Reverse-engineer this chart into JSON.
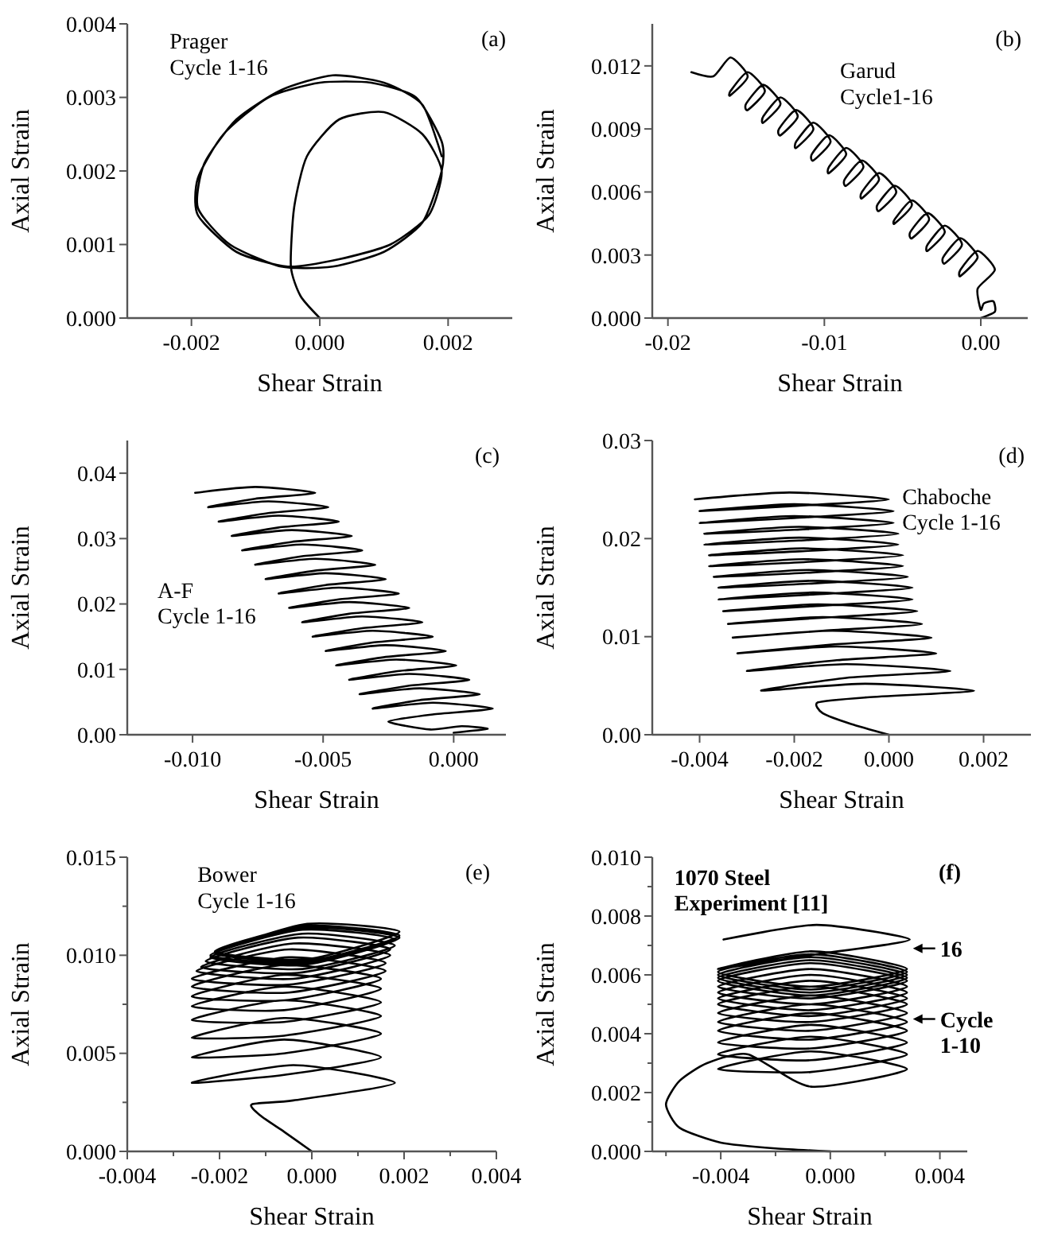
{
  "chart_data": [
    {
      "type": "line",
      "xlabel": "Shear Strain",
      "ylabel": "Axial Strain",
      "xlim": [
        -0.003,
        0.003
      ],
      "ylim": [
        0,
        0.004
      ],
      "xticks": [
        {
          "value": -0.002,
          "label": "-0.002"
        },
        {
          "value": 0,
          "label": "0.000"
        },
        {
          "value": 0.002,
          "label": "0.002"
        }
      ],
      "yticks": [
        {
          "value": 0,
          "label": "0.000"
        },
        {
          "value": 0.001,
          "label": "0.001"
        },
        {
          "value": 0.002,
          "label": "0.002"
        },
        {
          "value": 0.003,
          "label": "0.003"
        },
        {
          "value": 0.004,
          "label": "0.004"
        }
      ],
      "annotations": [
        "(a)",
        "Prager\nCycle 1-16"
      ],
      "series": [
        {
          "color": "#000000",
          "x": [
            0,
            -0.0003,
            -0.00045,
            -0.0004,
            -0.0002,
            0.0003,
            0.001,
            0.0016,
            0.0019,
            0.0017,
            0.0011,
            0.0003,
            -0.0005,
            -0.0013,
            -0.0019,
            -0.0019,
            -0.0015,
            -0.0008,
            0,
            0.0008,
            0.0015,
            0.0019,
            0.0019,
            0.0016,
            0.001,
            0.0002,
            -0.0006,
            -0.0014,
            -0.0019,
            -0.0018,
            -0.0013,
            -0.0006,
            0.0002,
            0.001,
            0.0016,
            0.0019
          ],
          "values": [
            0,
            0.0003,
            0.0007,
            0.0015,
            0.0022,
            0.0027,
            0.0028,
            0.0025,
            0.002,
            0.0014,
            0.001,
            0.0008,
            0.0007,
            0.0009,
            0.0014,
            0.0019,
            0.0025,
            0.003,
            0.0032,
            0.0032,
            0.003,
            0.0024,
            0.002,
            0.0013,
            0.0009,
            0.0007,
            0.0007,
            0.001,
            0.0015,
            0.0021,
            0.0027,
            0.0031,
            0.0033,
            0.0032,
            0.0029,
            0.0022
          ]
        }
      ]
    },
    {
      "type": "line",
      "xlabel": "Shear Strain",
      "ylabel": "Axial Strain",
      "xlim": [
        -0.021,
        0.003
      ],
      "ylim": [
        0,
        0.014
      ],
      "xticks": [
        {
          "value": -0.02,
          "label": "-0.02"
        },
        {
          "value": -0.01,
          "label": "-0.01"
        },
        {
          "value": 0,
          "label": "0.00"
        }
      ],
      "yticks": [
        {
          "value": 0,
          "label": "0.000"
        },
        {
          "value": 0.003,
          "label": "0.003"
        },
        {
          "value": 0.006,
          "label": "0.006"
        },
        {
          "value": 0.009,
          "label": "0.009"
        },
        {
          "value": 0.012,
          "label": "0.012"
        }
      ],
      "annotations": [
        "(b)",
        "Garud\nCycle1-16"
      ],
      "series": [
        {
          "color": "#000000",
          "x": [
            0,
            0.0009,
            0.0008,
            0.0002,
            0,
            -0.0002,
            0.0009,
            -0.0002,
            -0.0013,
            -0.0013,
            -0.0002,
            -0.0013,
            -0.0024,
            -0.0023,
            -0.0012,
            -0.0023,
            -0.0034,
            -0.0034,
            -0.0023,
            -0.0034,
            -0.0045,
            -0.0044,
            -0.0033,
            -0.0044,
            -0.0055,
            -0.0055,
            -0.0044,
            -0.0055,
            -0.0066,
            -0.0065,
            -0.0054,
            -0.0065,
            -0.0076,
            -0.0076,
            -0.0065,
            -0.0076,
            -0.0087,
            -0.0086,
            -0.0075,
            -0.0086,
            -0.0097,
            -0.0097,
            -0.0086,
            -0.0097,
            -0.0108,
            -0.0107,
            -0.0096,
            -0.0107,
            -0.0118,
            -0.0118,
            -0.0107,
            -0.0118,
            -0.0129,
            -0.0128,
            -0.0117,
            -0.0128,
            -0.0139,
            -0.0139,
            -0.0128,
            -0.0139,
            -0.015,
            -0.0149,
            -0.0138,
            -0.0149,
            -0.016,
            -0.016,
            -0.0149,
            -0.016,
            -0.0171,
            -0.0185
          ],
          "values": [
            0,
            0.0003,
            0.0008,
            0.0007,
            0.0004,
            0.0014,
            0.0023,
            0.0032,
            0.0023,
            0.002,
            0.0029,
            0.0038,
            0.0029,
            0.0026,
            0.0035,
            0.0044,
            0.0035,
            0.0032,
            0.0041,
            0.005,
            0.0041,
            0.0038,
            0.0047,
            0.0056,
            0.0047,
            0.0045,
            0.0054,
            0.0063,
            0.0054,
            0.0051,
            0.006,
            0.0069,
            0.006,
            0.0057,
            0.0066,
            0.0075,
            0.0066,
            0.0063,
            0.0072,
            0.0081,
            0.0072,
            0.0069,
            0.0078,
            0.0087,
            0.0078,
            0.0075,
            0.0084,
            0.0093,
            0.0084,
            0.0081,
            0.009,
            0.0099,
            0.009,
            0.0087,
            0.0096,
            0.0105,
            0.0096,
            0.0093,
            0.0102,
            0.0111,
            0.0102,
            0.0099,
            0.0108,
            0.0117,
            0.0108,
            0.0106,
            0.0115,
            0.0124,
            0.0115,
            0.0117
          ]
        }
      ]
    },
    {
      "type": "line",
      "xlabel": "Shear Strain",
      "ylabel": "Axial Strain",
      "xlim": [
        -0.0125,
        0.002
      ],
      "ylim": [
        0,
        0.045
      ],
      "xticks": [
        {
          "value": -0.01,
          "label": "-0.010"
        },
        {
          "value": -0.005,
          "label": "-0.005"
        },
        {
          "value": 0,
          "label": "0.000"
        }
      ],
      "yticks": [
        {
          "value": 0,
          "label": "0.00"
        },
        {
          "value": 0.01,
          "label": "0.01"
        },
        {
          "value": 0.02,
          "label": "0.02"
        },
        {
          "value": 0.03,
          "label": "0.03"
        },
        {
          "value": 0.04,
          "label": "0.04"
        }
      ],
      "annotations": [
        "(c)",
        "A-F\nCycle 1-16"
      ],
      "series": [
        {
          "color": "#000000",
          "x": [
            0,
            0.0013,
            0.0003,
            -0.0009,
            -0.0025,
            -0.0008,
            0.0015,
            -0.0008,
            -0.0031,
            -0.0013,
            0.001,
            -0.0013,
            -0.0036,
            -0.0017,
            0.0006,
            -0.0017,
            -0.004,
            -0.0022,
            0.0001,
            -0.0022,
            -0.0045,
            -0.0026,
            -0.0003,
            -0.0026,
            -0.0049,
            -0.0031,
            -0.0008,
            -0.0031,
            -0.0054,
            -0.0035,
            -0.0012,
            -0.0035,
            -0.0058,
            -0.004,
            -0.0017,
            -0.004,
            -0.0063,
            -0.0044,
            -0.0021,
            -0.0044,
            -0.0067,
            -0.0049,
            -0.0026,
            -0.0049,
            -0.0072,
            -0.0053,
            -0.003,
            -0.0053,
            -0.0076,
            -0.0058,
            -0.0035,
            -0.0058,
            -0.0081,
            -0.0062,
            -0.0039,
            -0.0062,
            -0.0085,
            -0.0067,
            -0.0044,
            -0.0067,
            -0.009,
            -0.0071,
            -0.0048,
            -0.0071,
            -0.0094,
            -0.0076,
            -0.0053,
            -0.0076,
            -0.0099
          ],
          "values": [
            0.0003,
            0.0009,
            0.0013,
            0.0008,
            0.002,
            0.0031,
            0.004,
            0.0049,
            0.004,
            0.0053,
            0.0062,
            0.0071,
            0.0062,
            0.0075,
            0.0084,
            0.0093,
            0.0084,
            0.0097,
            0.0106,
            0.0115,
            0.0106,
            0.0119,
            0.0128,
            0.0137,
            0.0128,
            0.0141,
            0.015,
            0.0159,
            0.015,
            0.0163,
            0.0172,
            0.0181,
            0.0172,
            0.0185,
            0.0194,
            0.0203,
            0.0194,
            0.0207,
            0.0216,
            0.0225,
            0.0216,
            0.0229,
            0.0238,
            0.0247,
            0.0238,
            0.0251,
            0.026,
            0.0269,
            0.026,
            0.0273,
            0.0282,
            0.0291,
            0.0282,
            0.0295,
            0.0304,
            0.0313,
            0.0304,
            0.0317,
            0.0326,
            0.0335,
            0.0326,
            0.0339,
            0.0348,
            0.0357,
            0.0348,
            0.0361,
            0.037,
            0.0379,
            0.037
          ]
        }
      ]
    },
    {
      "type": "line",
      "xlabel": "Shear Strain",
      "ylabel": "Axial Strain",
      "xlim": [
        -0.005,
        0.003
      ],
      "ylim": [
        0,
        0.03
      ],
      "xticks": [
        {
          "value": -0.004,
          "label": "-0.004"
        },
        {
          "value": -0.002,
          "label": "-0.002"
        },
        {
          "value": 0,
          "label": "0.000"
        },
        {
          "value": 0.002,
          "label": "0.002"
        }
      ],
      "yticks": [
        {
          "value": 0,
          "label": "0.00"
        },
        {
          "value": 0.01,
          "label": "0.01"
        },
        {
          "value": 0.02,
          "label": "0.02"
        },
        {
          "value": 0.03,
          "label": "0.03"
        }
      ],
      "annotations": [
        "(d)",
        "Chaboche\nCycle 1-16"
      ],
      "series": [
        {
          "color": "#000000",
          "x": [
            0,
            -0.0008,
            -0.0014,
            -0.0015,
            -0.0005,
            0.0018,
            -0.0005,
            -0.0027,
            -0.0009,
            0.0013,
            -0.0009,
            -0.003,
            -0.0011,
            0.001,
            -0.0011,
            -0.0032,
            -0.0012,
            0.0009,
            -0.0012,
            -0.0033,
            -0.0014,
            0.0007,
            -0.0014,
            -0.0034,
            -0.0015,
            0.0006,
            -0.0015,
            -0.0035,
            -0.0016,
            0.0005,
            -0.0016,
            -0.0036,
            -0.0016,
            0.0005,
            -0.0016,
            -0.0036,
            -0.0017,
            0.0004,
            -0.0017,
            -0.0037,
            -0.0018,
            0.0003,
            -0.0018,
            -0.0038,
            -0.0018,
            0.0003,
            -0.0018,
            -0.0038,
            -0.0019,
            0.0002,
            -0.0019,
            -0.0039,
            -0.0019,
            0.0002,
            -0.0019,
            -0.0039,
            -0.002,
            0.0001,
            -0.002,
            -0.004,
            -0.002,
            0.0001,
            -0.002,
            -0.004,
            -0.0021,
            0,
            -0.0021,
            -0.0041
          ],
          "values": [
            0,
            0.0011,
            0.0022,
            0.0033,
            0.0038,
            0.0045,
            0.0052,
            0.0045,
            0.0058,
            0.0065,
            0.0072,
            0.0065,
            0.0076,
            0.0083,
            0.009,
            0.0083,
            0.0092,
            0.0099,
            0.0106,
            0.0099,
            0.0106,
            0.0113,
            0.012,
            0.0113,
            0.0119,
            0.0126,
            0.0133,
            0.0126,
            0.0131,
            0.0138,
            0.0145,
            0.0138,
            0.0143,
            0.015,
            0.0157,
            0.015,
            0.0154,
            0.0161,
            0.0168,
            0.0161,
            0.0165,
            0.0172,
            0.0179,
            0.0172,
            0.0176,
            0.0183,
            0.019,
            0.0183,
            0.0187,
            0.0194,
            0.0201,
            0.0194,
            0.0198,
            0.0205,
            0.0212,
            0.0205,
            0.0209,
            0.0216,
            0.0223,
            0.0216,
            0.0221,
            0.0228,
            0.0235,
            0.0228,
            0.0233,
            0.024,
            0.0247,
            0.024
          ]
        }
      ]
    },
    {
      "type": "line",
      "xlabel": "Shear Strain",
      "ylabel": "Axial Strain",
      "xlim": [
        -0.004,
        0.004
      ],
      "ylim": [
        0,
        0.015
      ],
      "xticks": [
        {
          "value": -0.004,
          "label": "-0.004"
        },
        {
          "value": -0.003,
          "label": null
        },
        {
          "value": -0.002,
          "label": "-0.002"
        },
        {
          "value": -0.001,
          "label": null
        },
        {
          "value": 0,
          "label": "0.000"
        },
        {
          "value": 0.001,
          "label": null
        },
        {
          "value": 0.002,
          "label": "0.002"
        },
        {
          "value": 0.003,
          "label": null
        },
        {
          "value": 0.004,
          "label": "0.004"
        }
      ],
      "yticks": [
        {
          "value": 0,
          "label": "0.000"
        },
        {
          "value": 0.0025,
          "label": null
        },
        {
          "value": 0.005,
          "label": "0.005"
        },
        {
          "value": 0.0075,
          "label": null
        },
        {
          "value": 0.01,
          "label": "0.010"
        },
        {
          "value": 0.0125,
          "label": null
        },
        {
          "value": 0.015,
          "label": "0.015"
        }
      ],
      "annotations": [
        "(e)",
        "Bower\nCycle 1-16"
      ],
      "series": [
        {
          "color": "#000000",
          "x": [
            0,
            -0.0006,
            -0.0011,
            -0.0013,
            -0.0004,
            0.0018,
            -0.0004,
            -0.0026,
            -0.0006,
            0.0015,
            -0.0006,
            -0.0026,
            -0.0006,
            0.0015,
            -0.0006,
            -0.0026,
            -0.0006,
            0.0015,
            -0.0006,
            -0.0026,
            -0.0006,
            0.0015,
            -0.0006,
            -0.0026,
            -0.0006,
            0.0015,
            -0.0006,
            -0.0026,
            -0.0006,
            0.0015,
            -0.0006,
            -0.0026,
            -0.0005,
            0.0016,
            -0.0005,
            -0.0026,
            -0.0005,
            0.0016,
            -0.0005,
            -0.0025,
            -0.0004,
            0.0017,
            -0.0004,
            -0.0024,
            -0.0003,
            0.0017,
            -0.0003,
            -0.0023,
            -0.0002,
            0.0018,
            -0.0002,
            -0.0022,
            -0.0002,
            0.0018,
            -0.0002,
            -0.0022,
            -0.0001,
            0.0019,
            -0.0001,
            -0.0021,
            -0.0001,
            0.0019,
            -0.0001,
            -0.0021,
            -0.0001,
            0.0019,
            -0.0001,
            -0.0021
          ],
          "values": [
            0,
            0.001,
            0.0018,
            0.0024,
            0.0026,
            0.0035,
            0.0044,
            0.0035,
            0.0039,
            0.0048,
            0.0057,
            0.0048,
            0.005,
            0.006,
            0.0068,
            0.0058,
            0.0059,
            0.0069,
            0.0077,
            0.0067,
            0.0066,
            0.0076,
            0.0084,
            0.0074,
            0.0072,
            0.0083,
            0.009,
            0.0079,
            0.0077,
            0.0088,
            0.0095,
            0.0084,
            0.0081,
            0.0092,
            0.0099,
            0.0088,
            0.0085,
            0.0096,
            0.0103,
            0.0092,
            0.0088,
            0.01,
            0.0106,
            0.0094,
            0.0091,
            0.0103,
            0.0109,
            0.0097,
            0.0093,
            0.0105,
            0.0111,
            0.0099,
            0.0095,
            0.0108,
            0.0113,
            0.01,
            0.0096,
            0.0109,
            0.0114,
            0.0101,
            0.0097,
            0.011,
            0.0115,
            0.0102,
            0.0098,
            0.0112,
            0.0116,
            0.0102
          ]
        }
      ]
    },
    {
      "type": "line",
      "xlabel": "Shear Strain",
      "ylabel": "Axial Strain",
      "xlim": [
        -0.0065,
        0.005
      ],
      "ylim": [
        0,
        0.01
      ],
      "xticks": [
        {
          "value": -0.006,
          "label": null
        },
        {
          "value": -0.004,
          "label": "-0.004"
        },
        {
          "value": -0.002,
          "label": null
        },
        {
          "value": 0,
          "label": "0.000"
        },
        {
          "value": 0.002,
          "label": null
        },
        {
          "value": 0.004,
          "label": "0.004"
        }
      ],
      "yticks": [
        {
          "value": 0,
          "label": "0.000"
        },
        {
          "value": 0.001,
          "label": null
        },
        {
          "value": 0.002,
          "label": "0.002"
        },
        {
          "value": 0.003,
          "label": null
        },
        {
          "value": 0.004,
          "label": "0.004"
        },
        {
          "value": 0.005,
          "label": null
        },
        {
          "value": 0.006,
          "label": "0.006"
        },
        {
          "value": 0.007,
          "label": null
        },
        {
          "value": 0.008,
          "label": "0.008"
        },
        {
          "value": 0.009,
          "label": null
        },
        {
          "value": 0.01,
          "label": "0.010"
        }
      ],
      "annotations": [
        "(f)",
        "1070 Steel\nExperiment [11]",
        {
          "text": "16",
          "x": 0.0029,
          "y": 0.0069
        },
        {
          "text": "Cycle\n1-10",
          "x": 0.0029,
          "y": 0.0045
        }
      ],
      "series": [
        {
          "color": "#000000",
          "x": [
            0,
            -0.002,
            -0.004,
            -0.0055,
            -0.006,
            -0.0055,
            -0.0045,
            -0.003,
            -0.0007,
            0.0028,
            -0.0007,
            -0.0041,
            -0.0007,
            0.0028,
            -0.0007,
            -0.0041,
            -0.0007,
            0.0028,
            -0.0007,
            -0.0041,
            -0.0007,
            0.0028,
            -0.0007,
            -0.0041,
            -0.0007,
            0.0028,
            -0.0007,
            -0.0041,
            -0.0007,
            0.0028,
            -0.0007,
            -0.0041,
            -0.0007,
            0.0028,
            -0.0007,
            -0.0041,
            -0.0007,
            0.0028,
            -0.0007,
            -0.0041,
            -0.0007,
            0.0028,
            -0.0007,
            -0.0041,
            -0.0007,
            0.0028,
            -0.0007,
            -0.0041,
            -0.0007,
            0.0028,
            -0.0007,
            -0.0041,
            -0.0007,
            0.0028,
            -0.0007,
            -0.0041,
            -0.0007,
            0.0028,
            -0.0007,
            -0.0041,
            -0.0007,
            0.0028,
            -0.0007,
            -0.0041,
            -0.0007,
            0.0028,
            -0.0007,
            -0.0041,
            -0.0005,
            0.0029,
            -0.0005,
            -0.0039
          ],
          "values": [
            0,
            0.0001,
            0.0003,
            0.0008,
            0.0016,
            0.0024,
            0.003,
            0.0033,
            0.0022,
            0.0028,
            0.0034,
            0.0028,
            0.0027,
            0.0033,
            0.0039,
            0.0033,
            0.0031,
            0.0037,
            0.0043,
            0.0037,
            0.0035,
            0.0041,
            0.0047,
            0.0041,
            0.0038,
            0.0044,
            0.005,
            0.0044,
            0.0041,
            0.0047,
            0.0053,
            0.0047,
            0.0044,
            0.005,
            0.0056,
            0.005,
            0.0046,
            0.0052,
            0.0058,
            0.0052,
            0.0048,
            0.0054,
            0.006,
            0.0054,
            0.005,
            0.0056,
            0.0062,
            0.0056,
            0.0052,
            0.0058,
            0.0064,
            0.0058,
            0.0053,
            0.0059,
            0.0065,
            0.0059,
            0.0054,
            0.006,
            0.0066,
            0.006,
            0.0055,
            0.0061,
            0.0067,
            0.0061,
            0.0056,
            0.0062,
            0.0068,
            0.0062,
            0.0067,
            0.0072,
            0.0077,
            0.0072
          ]
        }
      ]
    }
  ]
}
